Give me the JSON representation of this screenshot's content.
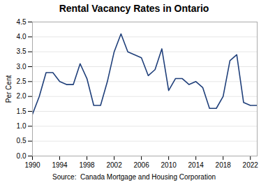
{
  "chart_data": {
    "type": "line",
    "title": "Rental Vacancy Rates in Ontario",
    "ylabel": "Per Cent",
    "annotation": "Source:  Canada Mortgage and Housing Corporation",
    "x": [
      1990,
      1991,
      1992,
      1993,
      1994,
      1995,
      1996,
      1997,
      1998,
      1999,
      2000,
      2001,
      2002,
      2003,
      2004,
      2005,
      2006,
      2007,
      2008,
      2009,
      2010,
      2011,
      2012,
      2013,
      2014,
      2015,
      2016,
      2017,
      2018,
      2019,
      2020,
      2021,
      2022,
      2023
    ],
    "values": [
      1.4,
      2.0,
      2.8,
      2.8,
      2.5,
      2.4,
      2.4,
      3.1,
      2.6,
      1.7,
      1.7,
      2.5,
      3.5,
      4.1,
      3.5,
      3.4,
      3.3,
      2.7,
      2.9,
      3.6,
      2.2,
      2.6,
      2.6,
      2.4,
      2.5,
      2.3,
      1.6,
      1.6,
      2.0,
      3.2,
      3.4,
      1.8,
      1.7,
      1.7
    ],
    "color": "#1F3F7A",
    "xlim": [
      1990,
      2023
    ],
    "xticks": [
      1990,
      1994,
      1998,
      2002,
      2006,
      2010,
      2014,
      2018,
      2022
    ],
    "ylim": [
      0,
      4.5
    ],
    "yticks": [
      {
        "value": 0,
        "label": "0.0"
      },
      0.5,
      {
        "value": 1,
        "label": "1.0"
      },
      1.5,
      {
        "value": 2,
        "label": "2.0"
      },
      2.5,
      {
        "value": 3,
        "label": "3.0"
      },
      3.5,
      {
        "value": 4,
        "label": "4.0"
      },
      4.5
    ],
    "grid": true
  }
}
